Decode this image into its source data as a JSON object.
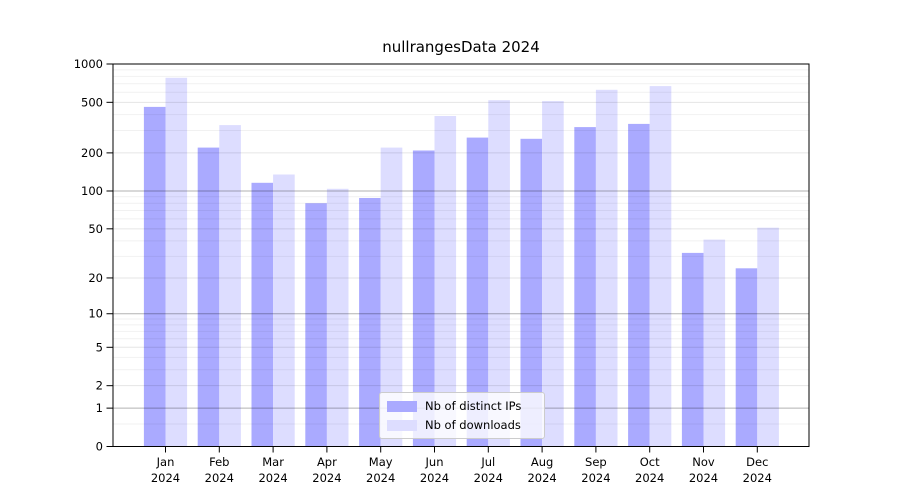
{
  "title": "nullrangesData 2024",
  "chart_data": {
    "type": "bar",
    "categories": [
      "Jan",
      "Feb",
      "Mar",
      "Apr",
      "May",
      "Jun",
      "Jul",
      "Aug",
      "Sep",
      "Oct",
      "Nov",
      "Dec"
    ],
    "x_year_label": "2024",
    "series": [
      {
        "name": "Nb of distinct IPs",
        "color": "#aaaaff",
        "values": [
          460,
          220,
          116,
          80,
          88,
          209,
          264,
          258,
          319,
          338,
          32,
          24
        ]
      },
      {
        "name": "Nb of downloads",
        "color": "#ddddff",
        "values": [
          779,
          331,
          135,
          104,
          220,
          390,
          520,
          511,
          627,
          671,
          41,
          51
        ]
      }
    ],
    "yscale": "log1p",
    "ylim": [
      0,
      1000
    ],
    "yticks": [
      1000,
      500,
      200,
      100,
      50,
      20,
      10,
      5,
      2,
      1,
      0
    ],
    "minor_gridlines": [
      0.5,
      3,
      4,
      6,
      7,
      8,
      9,
      30,
      40,
      60,
      70,
      80,
      90,
      300,
      400,
      600,
      700,
      800,
      900
    ],
    "grid": true,
    "legend_position": "inside-bottom-center",
    "axis_color": "#000000",
    "grid_color_major": "#999999",
    "grid_color_labeled": "#e0e0e0",
    "grid_color_minor": "#ededed"
  }
}
